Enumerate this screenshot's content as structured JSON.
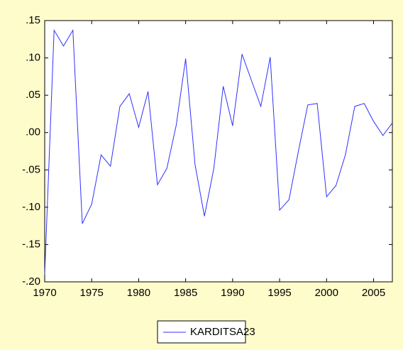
{
  "chart_data": {
    "type": "line",
    "x": [
      1970,
      1971,
      1972,
      1973,
      1974,
      1975,
      1976,
      1977,
      1978,
      1979,
      1980,
      1981,
      1982,
      1983,
      1984,
      1985,
      1986,
      1987,
      1988,
      1989,
      1990,
      1991,
      1992,
      1993,
      1994,
      1995,
      1996,
      1997,
      1998,
      1999,
      2000,
      2001,
      2002,
      2003,
      2004,
      2005,
      2006,
      2007
    ],
    "series": [
      {
        "name": "KARDITSA23",
        "color": "#3030ff",
        "values": [
          -0.19,
          0.137,
          0.116,
          0.137,
          -0.122,
          -0.096,
          -0.03,
          -0.045,
          0.035,
          0.052,
          0.007,
          0.055,
          -0.07,
          -0.048,
          0.01,
          0.099,
          -0.043,
          -0.112,
          -0.048,
          0.062,
          0.009,
          0.105,
          0.07,
          0.035,
          0.101,
          -0.104,
          -0.09,
          -0.025,
          0.037,
          0.039,
          -0.086,
          -0.071,
          -0.03,
          0.035,
          0.039,
          0.015,
          -0.004,
          0.013
        ]
      }
    ],
    "xlim": [
      1970,
      2007
    ],
    "xticks": [
      1970,
      1975,
      1980,
      1985,
      1990,
      1995,
      2000,
      2005
    ],
    "ylim": [
      -0.2,
      0.15
    ],
    "yticks": [
      {
        "value": -0.2,
        "label": "-.20"
      },
      {
        "value": -0.15,
        "label": "-.15"
      },
      {
        "value": -0.1,
        "label": "-.10"
      },
      {
        "value": -0.05,
        "label": "-.05"
      },
      {
        "value": 0,
        "label": ".00"
      },
      {
        "value": 0.05,
        "label": ".05"
      },
      {
        "value": 0.1,
        "label": ".10"
      },
      {
        "value": 0.15,
        "label": ".15"
      }
    ],
    "legend": "bottom"
  }
}
